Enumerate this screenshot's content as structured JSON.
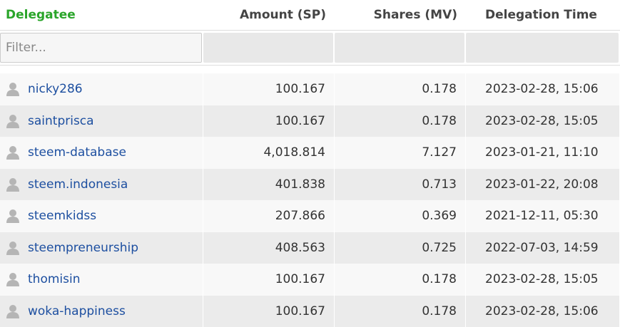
{
  "table": {
    "headers": [
      "Delegatee",
      "Amount (SP)",
      "Shares (MV)",
      "Delegation Time"
    ],
    "filter_placeholder": "Filter...",
    "rows": [
      [
        "nicky286",
        "100.167",
        "0.178",
        "2023-02-28, 15:06"
      ],
      [
        "saintprisca",
        "100.167",
        "0.178",
        "2023-02-28, 15:05"
      ],
      [
        "steem-database",
        "4,018.814",
        "7.127",
        "2023-01-21, 11:10"
      ],
      [
        "steem.indonesia",
        "401.838",
        "0.713",
        "2023-01-22, 20:08"
      ],
      [
        "steemkidss",
        "207.866",
        "0.369",
        "2021-12-11, 05:30"
      ],
      [
        "steempreneurship",
        "408.563",
        "0.725",
        "2022-07-03, 14:59"
      ],
      [
        "thomisin",
        "100.167",
        "0.178",
        "2023-02-28, 15:05"
      ],
      [
        "woka-happiness",
        "100.167",
        "0.178",
        "2023-02-28, 15:06"
      ]
    ]
  }
}
